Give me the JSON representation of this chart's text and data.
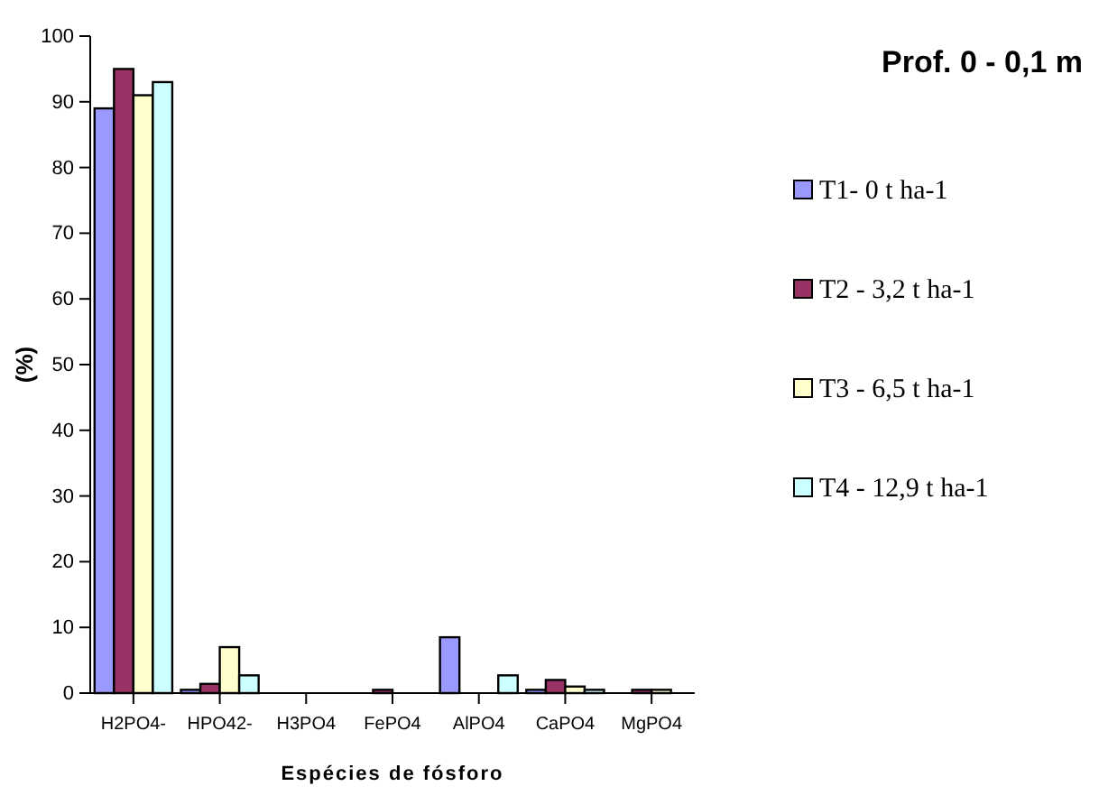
{
  "chart_data": {
    "type": "bar",
    "title": "Prof.  0 - 0,1 m",
    "xlabel": "Espécies de fósforo",
    "ylabel": "(%)",
    "categories": [
      "H2PO4-",
      "HPO42-",
      "H3PO4",
      "FePO4",
      "AlPO4",
      "CaPO4",
      "MgPO4"
    ],
    "series": [
      {
        "name": "T1- 0 t ha-1",
        "color": "#9999ff",
        "values": [
          89,
          0.5,
          0,
          0,
          8.5,
          0.5,
          0
        ]
      },
      {
        "name": "T2 - 3,2 t ha-1",
        "color": "#993366",
        "values": [
          95,
          1.4,
          0,
          0.5,
          0,
          2,
          0.5
        ]
      },
      {
        "name": "T3 - 6,5 t ha-1",
        "color": "#ffffcc",
        "values": [
          91,
          7,
          0,
          0,
          0,
          1,
          0.5
        ]
      },
      {
        "name": "T4 - 12,9 t ha-1",
        "color": "#ccffff",
        "values": [
          93,
          2.7,
          0,
          0,
          2.7,
          0.5,
          0
        ]
      }
    ],
    "ylim": [
      0,
      100
    ],
    "yticks": [
      0,
      10,
      20,
      30,
      40,
      50,
      60,
      70,
      80,
      90,
      100
    ],
    "legend": "right",
    "grid": false
  }
}
